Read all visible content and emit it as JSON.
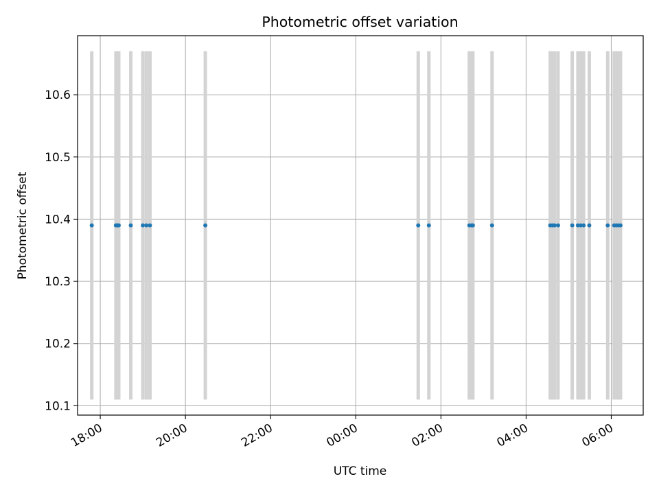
{
  "chart_data": {
    "type": "scatter",
    "title": "Photometric offset variation",
    "xlabel": "UTC time",
    "ylabel": "Photometric offset",
    "x_unit": "UTC time of day (night spans two dates)",
    "xlim": [
      "17:28",
      "06:45"
    ],
    "ylim": [
      10.085,
      10.695
    ],
    "x_ticks": [
      "18:00",
      "20:00",
      "22:00",
      "00:00",
      "02:00",
      "04:00",
      "06:00"
    ],
    "y_ticks": [
      "10.1",
      "10.2",
      "10.3",
      "10.4",
      "10.5",
      "10.6"
    ],
    "grid": true,
    "marker_color": "#1f77b4",
    "band_color": "#d3d3d3",
    "band_range": [
      10.11,
      10.67
    ],
    "points": [
      {
        "x": "17:48",
        "y": 10.39
      },
      {
        "x": "18:22",
        "y": 10.39
      },
      {
        "x": "18:24",
        "y": 10.39
      },
      {
        "x": "18:26",
        "y": 10.39
      },
      {
        "x": "18:43",
        "y": 10.39
      },
      {
        "x": "19:00",
        "y": 10.39
      },
      {
        "x": "19:05",
        "y": 10.39
      },
      {
        "x": "19:10",
        "y": 10.39
      },
      {
        "x": "20:28",
        "y": 10.39
      },
      {
        "x": "01:28",
        "y": 10.39
      },
      {
        "x": "01:43",
        "y": 10.39
      },
      {
        "x": "02:40",
        "y": 10.39
      },
      {
        "x": "02:43",
        "y": 10.39
      },
      {
        "x": "02:45",
        "y": 10.39
      },
      {
        "x": "03:12",
        "y": 10.39
      },
      {
        "x": "04:34",
        "y": 10.39
      },
      {
        "x": "04:37",
        "y": 10.39
      },
      {
        "x": "04:40",
        "y": 10.39
      },
      {
        "x": "04:45",
        "y": 10.39
      },
      {
        "x": "05:05",
        "y": 10.39
      },
      {
        "x": "05:13",
        "y": 10.39
      },
      {
        "x": "05:17",
        "y": 10.39
      },
      {
        "x": "05:21",
        "y": 10.39
      },
      {
        "x": "05:29",
        "y": 10.39
      },
      {
        "x": "05:55",
        "y": 10.39
      },
      {
        "x": "06:04",
        "y": 10.39
      },
      {
        "x": "06:07",
        "y": 10.39
      },
      {
        "x": "06:10",
        "y": 10.39
      },
      {
        "x": "06:13",
        "y": 10.39
      }
    ]
  }
}
